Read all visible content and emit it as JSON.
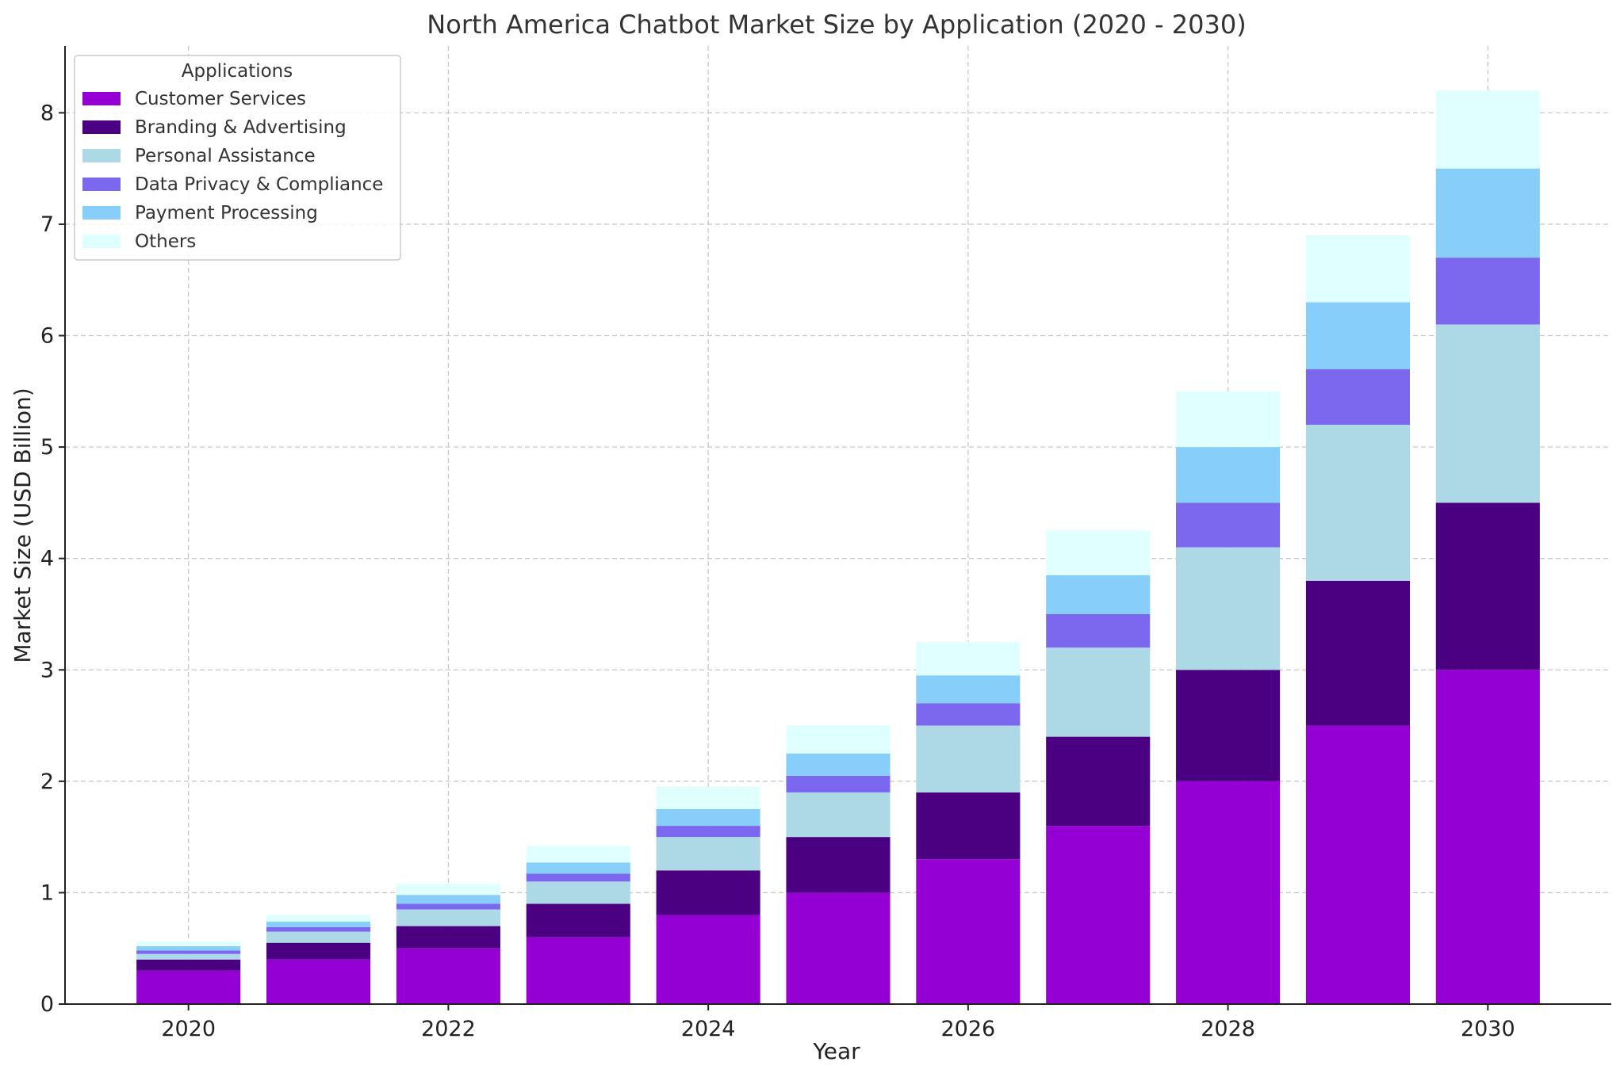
{
  "chart_data": {
    "type": "bar",
    "stacked": true,
    "title": "North America Chatbot Market Size by Application (2020 - 2030)",
    "xlabel": "Year",
    "ylabel": "Market Size (USD Billion)",
    "categories": [
      2020,
      2021,
      2022,
      2023,
      2024,
      2025,
      2026,
      2027,
      2028,
      2029,
      2030
    ],
    "x_ticks": [
      2020,
      2022,
      2024,
      2026,
      2028,
      2030
    ],
    "y_ticks": [
      0,
      1,
      2,
      3,
      4,
      5,
      6,
      7,
      8
    ],
    "xlim": [
      2019.05,
      2030.95
    ],
    "ylim": [
      0,
      8.6
    ],
    "grid": true,
    "legend": {
      "title": "Applications",
      "placement": "top-left"
    },
    "series": [
      {
        "name": "Customer Services",
        "color": "#9400D3",
        "values": [
          0.3,
          0.4,
          0.5,
          0.6,
          0.8,
          1.0,
          1.3,
          1.6,
          2.0,
          2.5,
          3.0
        ]
      },
      {
        "name": "Branding & Advertising",
        "color": "#4B0082",
        "values": [
          0.1,
          0.15,
          0.2,
          0.3,
          0.4,
          0.5,
          0.6,
          0.8,
          1.0,
          1.3,
          1.5
        ]
      },
      {
        "name": "Personal Assistance",
        "color": "#ADD8E6",
        "values": [
          0.05,
          0.1,
          0.15,
          0.2,
          0.3,
          0.4,
          0.6,
          0.8,
          1.1,
          1.4,
          1.6
        ]
      },
      {
        "name": "Data Privacy & Compliance",
        "color": "#7B68EE",
        "values": [
          0.03,
          0.04,
          0.05,
          0.07,
          0.1,
          0.15,
          0.2,
          0.3,
          0.4,
          0.5,
          0.6
        ]
      },
      {
        "name": "Payment Processing",
        "color": "#87CEFA",
        "values": [
          0.04,
          0.05,
          0.08,
          0.1,
          0.15,
          0.2,
          0.25,
          0.35,
          0.5,
          0.6,
          0.8
        ]
      },
      {
        "name": "Others",
        "color": "#E0FFFF",
        "values": [
          0.04,
          0.06,
          0.1,
          0.15,
          0.2,
          0.25,
          0.3,
          0.4,
          0.5,
          0.6,
          0.7
        ]
      }
    ]
  }
}
